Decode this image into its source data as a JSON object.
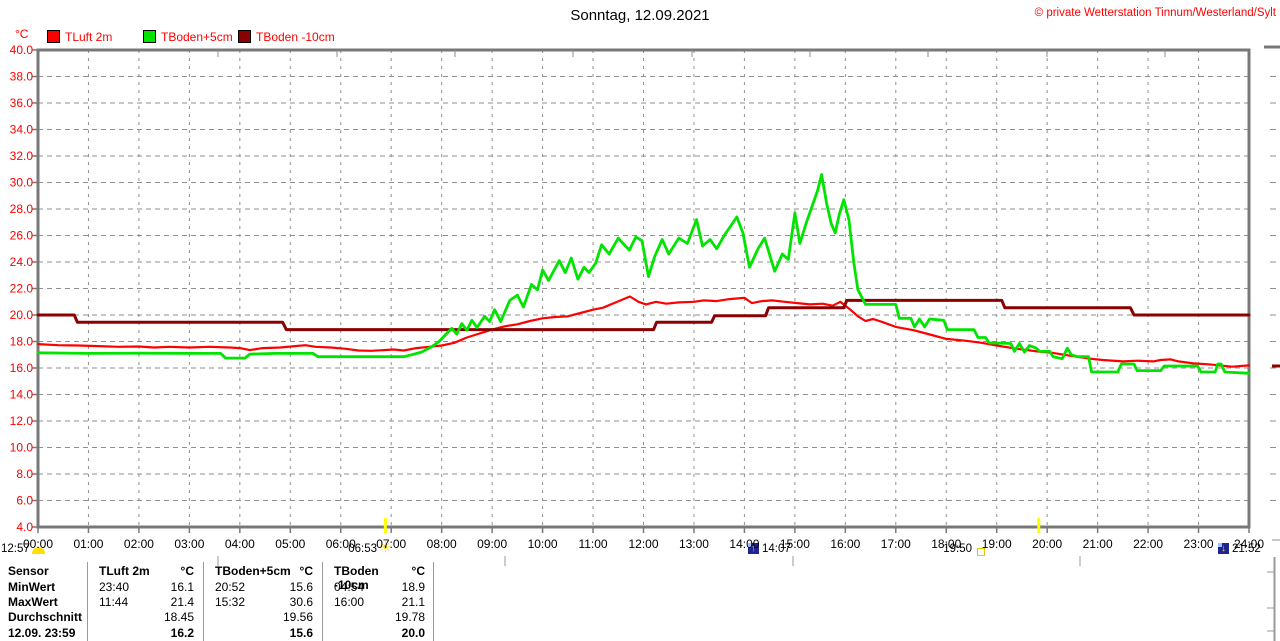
{
  "header": {
    "title": "Sonntag, 12.09.2021",
    "copyright": "© private Wetterstation Tinnum/Westerland/Sylt",
    "y_unit": "°C"
  },
  "legend": {
    "items": [
      {
        "label": "TLuft 2m",
        "color": "#ff0000"
      },
      {
        "label": "TBoden+5cm",
        "color": "#00e400"
      },
      {
        "label": "TBoden -10cm",
        "color": "#8b0000"
      }
    ]
  },
  "sun_moon": {
    "moon_transit": {
      "time": "12:57"
    },
    "sunrise": {
      "time": "06:53"
    },
    "moonrise": {
      "time": "14:07"
    },
    "sunset": {
      "time": "19:50"
    },
    "moonset": {
      "time": "21:52"
    },
    "moonrise_arrow": "↑",
    "moonset_arrow": "↓"
  },
  "chart_data": {
    "type": "line",
    "title": "Sonntag, 12.09.2021",
    "ylabel": "°C",
    "ylim": [
      4,
      40
    ],
    "y_step": 2,
    "xlim_hours": [
      0,
      24
    ],
    "grid": true,
    "legend_position": "top-left",
    "y_tick_labels": [
      "40.0",
      "38.0",
      "36.0",
      "34.0",
      "32.0",
      "30.0",
      "28.0",
      "26.0",
      "24.0",
      "22.0",
      "20.0",
      "18.0",
      "16.0",
      "14.0",
      "12.0",
      "10.0",
      "8.0",
      "6.0",
      "4.0"
    ],
    "x_tick_labels": [
      "00:00",
      "01:00",
      "02:00",
      "03:00",
      "04:00",
      "05:00",
      "06:00",
      "07:00",
      "08:00",
      "09:00",
      "10:00",
      "11:00",
      "12:00",
      "13:00",
      "14:00",
      "15:00",
      "16:00",
      "17:00",
      "18:00",
      "19:00",
      "20:00",
      "21:00",
      "22:00",
      "23:00",
      "24:00"
    ],
    "sun_lines_hours": [
      6.883,
      19.833
    ],
    "series": [
      {
        "name": "TLuft 2m",
        "color": "#ff0000",
        "width": 2.2,
        "points": [
          [
            0,
            17.8
          ],
          [
            0.4,
            17.72
          ],
          [
            0.8,
            17.7
          ],
          [
            1.2,
            17.65
          ],
          [
            1.6,
            17.6
          ],
          [
            2,
            17.62
          ],
          [
            2.3,
            17.55
          ],
          [
            2.6,
            17.6
          ],
          [
            3,
            17.55
          ],
          [
            3.4,
            17.6
          ],
          [
            3.8,
            17.55
          ],
          [
            4,
            17.5
          ],
          [
            4.2,
            17.35
          ],
          [
            4.45,
            17.5
          ],
          [
            4.8,
            17.55
          ],
          [
            5.1,
            17.65
          ],
          [
            5.3,
            17.72
          ],
          [
            5.5,
            17.6
          ],
          [
            5.8,
            17.55
          ],
          [
            6.1,
            17.45
          ],
          [
            6.35,
            17.32
          ],
          [
            6.6,
            17.3
          ],
          [
            6.85,
            17.35
          ],
          [
            7.05,
            17.4
          ],
          [
            7.25,
            17.32
          ],
          [
            7.5,
            17.5
          ],
          [
            7.75,
            17.6
          ],
          [
            8,
            17.7
          ],
          [
            8.25,
            17.9
          ],
          [
            8.5,
            18.3
          ],
          [
            8.75,
            18.6
          ],
          [
            9,
            18.9
          ],
          [
            9.25,
            19.15
          ],
          [
            9.5,
            19.3
          ],
          [
            9.75,
            19.55
          ],
          [
            10,
            19.75
          ],
          [
            10.25,
            19.85
          ],
          [
            10.5,
            19.9
          ],
          [
            10.75,
            20.15
          ],
          [
            11,
            20.4
          ],
          [
            11.2,
            20.55
          ],
          [
            11.45,
            20.95
          ],
          [
            11.73,
            21.4
          ],
          [
            11.9,
            21
          ],
          [
            12.05,
            20.8
          ],
          [
            12.25,
            21
          ],
          [
            12.45,
            20.85
          ],
          [
            12.7,
            20.95
          ],
          [
            13,
            21
          ],
          [
            13.2,
            21.1
          ],
          [
            13.45,
            21.05
          ],
          [
            13.7,
            21.2
          ],
          [
            14,
            21.3
          ],
          [
            14.15,
            20.9
          ],
          [
            14.35,
            21.05
          ],
          [
            14.55,
            21.1
          ],
          [
            14.8,
            21
          ],
          [
            15.05,
            20.9
          ],
          [
            15.3,
            20.8
          ],
          [
            15.55,
            20.85
          ],
          [
            15.75,
            20.7
          ],
          [
            15.9,
            21
          ],
          [
            16.1,
            20.4
          ],
          [
            16.25,
            19.9
          ],
          [
            16.4,
            19.55
          ],
          [
            16.55,
            19.7
          ],
          [
            16.75,
            19.45
          ],
          [
            17,
            19.1
          ],
          [
            17.35,
            18.85
          ],
          [
            17.6,
            18.6
          ],
          [
            18,
            18.2
          ],
          [
            18.4,
            18.05
          ],
          [
            18.7,
            17.9
          ],
          [
            19,
            17.7
          ],
          [
            19.4,
            17.45
          ],
          [
            19.8,
            17.25
          ],
          [
            20.1,
            17.15
          ],
          [
            20.5,
            16.9
          ],
          [
            20.85,
            16.7
          ],
          [
            21.1,
            16.6
          ],
          [
            21.5,
            16.5
          ],
          [
            21.8,
            16.55
          ],
          [
            22.1,
            16.5
          ],
          [
            22.25,
            16.6
          ],
          [
            22.45,
            16.65
          ],
          [
            22.6,
            16.5
          ],
          [
            22.9,
            16.35
          ],
          [
            23.2,
            16.28
          ],
          [
            23.67,
            16.1
          ],
          [
            24,
            16.2
          ]
        ]
      },
      {
        "name": "TBoden+5cm",
        "color": "#00e400",
        "width": 2.8,
        "points": [
          [
            0,
            17.15
          ],
          [
            1,
            17.1
          ],
          [
            2,
            17.12
          ],
          [
            3,
            17.1
          ],
          [
            3.62,
            17.1
          ],
          [
            3.72,
            16.75
          ],
          [
            4.1,
            16.75
          ],
          [
            4.2,
            17.05
          ],
          [
            4.7,
            17.1
          ],
          [
            5.45,
            17.1
          ],
          [
            5.55,
            16.85
          ],
          [
            6.4,
            16.85
          ],
          [
            7.25,
            16.85
          ],
          [
            7.4,
            17
          ],
          [
            7.6,
            17.2
          ],
          [
            7.8,
            17.6
          ],
          [
            7.95,
            18
          ],
          [
            8.1,
            18.6
          ],
          [
            8.2,
            19
          ],
          [
            8.3,
            18.55
          ],
          [
            8.4,
            19.35
          ],
          [
            8.5,
            18.85
          ],
          [
            8.6,
            19.6
          ],
          [
            8.7,
            19.05
          ],
          [
            8.85,
            19.9
          ],
          [
            8.95,
            19.5
          ],
          [
            9.05,
            20.4
          ],
          [
            9.17,
            19.5
          ],
          [
            9.35,
            21.1
          ],
          [
            9.5,
            21.5
          ],
          [
            9.62,
            20.6
          ],
          [
            9.78,
            22.3
          ],
          [
            9.9,
            21.9
          ],
          [
            10,
            23.4
          ],
          [
            10.12,
            22.6
          ],
          [
            10.33,
            24.1
          ],
          [
            10.45,
            23.2
          ],
          [
            10.57,
            24.3
          ],
          [
            10.7,
            22.7
          ],
          [
            10.82,
            23.6
          ],
          [
            10.92,
            23.2
          ],
          [
            11.05,
            23.9
          ],
          [
            11.17,
            25.3
          ],
          [
            11.32,
            24.6
          ],
          [
            11.5,
            25.8
          ],
          [
            11.62,
            25.3
          ],
          [
            11.72,
            24.9
          ],
          [
            11.85,
            25.9
          ],
          [
            11.97,
            25.6
          ],
          [
            12.1,
            22.9
          ],
          [
            12.22,
            24.4
          ],
          [
            12.37,
            25.7
          ],
          [
            12.5,
            24.6
          ],
          [
            12.7,
            25.8
          ],
          [
            12.87,
            25.4
          ],
          [
            13.05,
            27.2
          ],
          [
            13.17,
            25.2
          ],
          [
            13.32,
            25.7
          ],
          [
            13.45,
            25
          ],
          [
            13.6,
            26
          ],
          [
            13.85,
            27.4
          ],
          [
            13.97,
            26.2
          ],
          [
            14.1,
            23.6
          ],
          [
            14.27,
            25
          ],
          [
            14.4,
            25.8
          ],
          [
            14.6,
            23.3
          ],
          [
            14.75,
            24.6
          ],
          [
            14.87,
            24.2
          ],
          [
            15,
            27.7
          ],
          [
            15.1,
            25.4
          ],
          [
            15.22,
            26.9
          ],
          [
            15.35,
            28.3
          ],
          [
            15.45,
            29.4
          ],
          [
            15.53,
            30.6
          ],
          [
            15.63,
            28.4
          ],
          [
            15.72,
            26.9
          ],
          [
            15.8,
            26.2
          ],
          [
            15.88,
            27.6
          ],
          [
            15.97,
            28.7
          ],
          [
            16.07,
            27.2
          ],
          [
            16.17,
            23.9
          ],
          [
            16.25,
            21.9
          ],
          [
            16.4,
            20.8
          ],
          [
            17,
            20.8
          ],
          [
            17.07,
            19.75
          ],
          [
            17.3,
            19.75
          ],
          [
            17.37,
            19.1
          ],
          [
            17.47,
            19.7
          ],
          [
            17.57,
            19.1
          ],
          [
            17.67,
            19.7
          ],
          [
            17.95,
            19.6
          ],
          [
            18.02,
            18.9
          ],
          [
            18.55,
            18.9
          ],
          [
            18.63,
            18.3
          ],
          [
            18.78,
            18.3
          ],
          [
            18.85,
            17.9
          ],
          [
            19.28,
            17.85
          ],
          [
            19.35,
            17.25
          ],
          [
            19.45,
            17.85
          ],
          [
            19.55,
            17.2
          ],
          [
            19.65,
            17.7
          ],
          [
            19.78,
            17.5
          ],
          [
            19.85,
            17.25
          ],
          [
            20.05,
            17.25
          ],
          [
            20.12,
            16.85
          ],
          [
            20.3,
            16.7
          ],
          [
            20.4,
            17.5
          ],
          [
            20.48,
            17
          ],
          [
            20.6,
            16.85
          ],
          [
            20.82,
            16.85
          ],
          [
            20.88,
            15.7
          ],
          [
            21.4,
            15.7
          ],
          [
            21.47,
            16.3
          ],
          [
            21.72,
            16.3
          ],
          [
            21.78,
            15.8
          ],
          [
            22.25,
            15.8
          ],
          [
            22.32,
            16.15
          ],
          [
            22.98,
            16.15
          ],
          [
            23.05,
            15.7
          ],
          [
            23.33,
            15.7
          ],
          [
            23.38,
            16.3
          ],
          [
            23.45,
            16.3
          ],
          [
            23.52,
            15.7
          ],
          [
            24,
            15.6
          ]
        ]
      },
      {
        "name": "TBoden -10cm",
        "color": "#8b0000",
        "width": 3,
        "points": [
          [
            0,
            20
          ],
          [
            0.72,
            20
          ],
          [
            0.78,
            19.45
          ],
          [
            4.85,
            19.45
          ],
          [
            4.92,
            18.9
          ],
          [
            12.2,
            18.9
          ],
          [
            12.26,
            19.45
          ],
          [
            13.35,
            19.45
          ],
          [
            13.41,
            19.95
          ],
          [
            14.42,
            19.95
          ],
          [
            14.48,
            20.55
          ],
          [
            15.97,
            20.55
          ],
          [
            16.03,
            21.1
          ],
          [
            19.1,
            21.1
          ],
          [
            19.16,
            20.55
          ],
          [
            21.65,
            20.55
          ],
          [
            21.72,
            20
          ],
          [
            24,
            20
          ]
        ]
      }
    ]
  },
  "table": {
    "row_headers": [
      "Sensor",
      "MinWert",
      "MaxWert",
      "Durchschnitt",
      "12.09. 23:59"
    ],
    "columns": [
      {
        "header": "TLuft 2m",
        "unit": "°C",
        "min_time": "23:40",
        "min_value": "16.1",
        "max_time": "11:44",
        "max_value": "21.4",
        "avg_value": "18.45",
        "last_value": "16.2"
      },
      {
        "header": "TBoden+5cm",
        "unit": "°C",
        "min_time": "20:52",
        "min_value": "15.6",
        "max_time": "15:32",
        "max_value": "30.6",
        "avg_value": "19.56",
        "last_value": "15.6"
      },
      {
        "header": "TBoden -10cm",
        "unit": "°C",
        "min_time": "04:54",
        "min_value": "18.9",
        "max_time": "16:00",
        "max_value": "21.1",
        "avg_value": "19.78",
        "last_value": "20.0"
      }
    ]
  }
}
